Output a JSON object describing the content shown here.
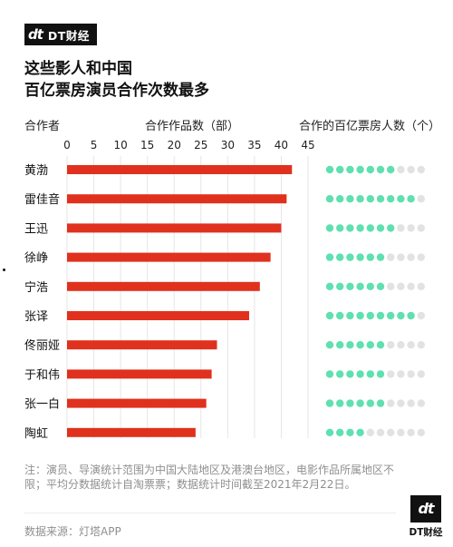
{
  "brand": {
    "mark": "dt",
    "name": "DT财经"
  },
  "title": {
    "line1": "这些影人和中国",
    "line2": "百亿票房演员合作次数最多"
  },
  "headers": {
    "collaborator": "合作者",
    "works": "合作作品数（部）",
    "actors": "合作的百亿票房人数（个）"
  },
  "colors": {
    "bar": "#e0311e",
    "dot_on": "#5fe0b0",
    "dot_off": "#e2e2e2",
    "grid": "#e6e6e6"
  },
  "chart_data": {
    "type": "bar",
    "orientation": "horizontal",
    "categories": [
      "黄渤",
      "雷佳音",
      "王迅",
      "徐峥",
      "宁浩",
      "张译",
      "佟丽娅",
      "于和伟",
      "张一白",
      "陶虹"
    ],
    "values": [
      42,
      41,
      40,
      38,
      36,
      34,
      28,
      27,
      26,
      24
    ],
    "xticks": [
      0,
      5,
      10,
      15,
      20,
      25,
      30,
      35,
      40,
      45
    ],
    "xlim": [
      0,
      45
    ],
    "xlabel": "合作作品数（部）",
    "dot_series": {
      "name": "合作的百亿票房人数（个）",
      "total": 10,
      "values": [
        7,
        9,
        7,
        6,
        6,
        9,
        6,
        6,
        6,
        4
      ]
    }
  },
  "note": "注：演员、导演统计范围为中国大陆地区及港澳台地区，电影作品所属地区不限；平均分数据统计自淘票票；数据统计时间截至2021年2月22日。",
  "source": "数据来源：灯塔APP",
  "logo": {
    "mark": "dt",
    "name": "DT财经"
  }
}
